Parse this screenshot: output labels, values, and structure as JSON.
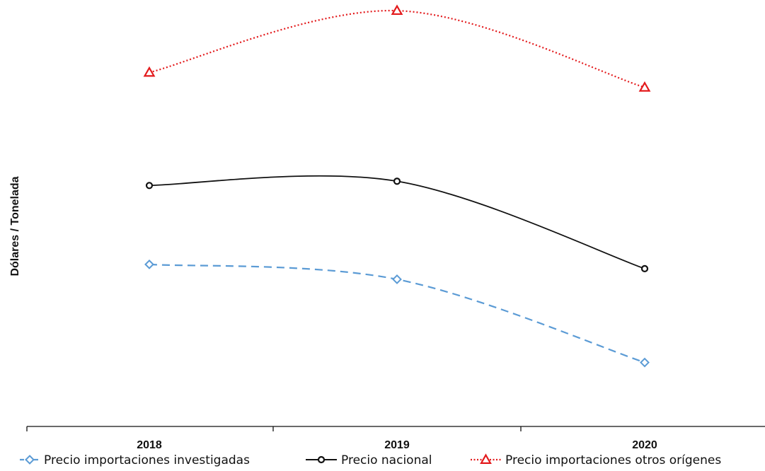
{
  "chart_data": {
    "type": "line",
    "title": "",
    "xlabel": "",
    "ylabel": "Dólares / Tonelada",
    "categories": [
      "2018",
      "2019",
      "2020"
    ],
    "ylim": [
      0,
      100
    ],
    "y_ticks_shown": false,
    "grid": false,
    "legend_position": "bottom",
    "series": [
      {
        "name": "Precio importaciones investigadas",
        "values": [
          38,
          34.5,
          15
        ],
        "color": "#5b9bd5",
        "line_style": "dashed",
        "marker": "diamond"
      },
      {
        "name": "Precio nacional",
        "values": [
          56.5,
          57.5,
          37
        ],
        "color": "#111111",
        "line_style": "solid",
        "marker": "circle"
      },
      {
        "name": "Precio importaciones otros orígenes",
        "values": [
          83,
          97.5,
          79.5
        ],
        "color": "#e31a1c",
        "line_style": "dotted",
        "marker": "triangle"
      }
    ]
  }
}
